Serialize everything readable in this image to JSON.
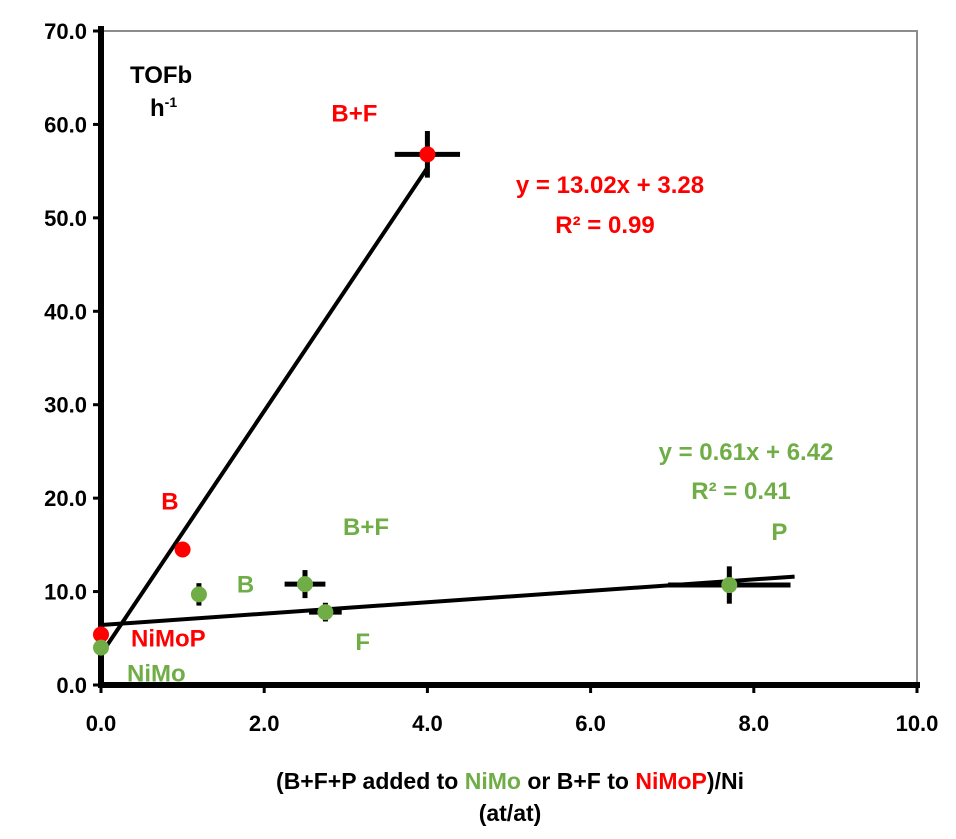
{
  "chart_data": {
    "type": "scatter",
    "xlim": [
      0,
      10
    ],
    "ylim": [
      0,
      70
    ],
    "xticks": [
      "0.0",
      "2.0",
      "4.0",
      "6.0",
      "8.0",
      "10.0"
    ],
    "yticks": [
      "0.0",
      "10.0",
      "20.0",
      "30.0",
      "40.0",
      "50.0",
      "60.0",
      "70.0"
    ],
    "ylabel_line1": "TOFb",
    "ylabel_line2_base": "h",
    "ylabel_line2_sup": "-1",
    "xlabel": {
      "part1": "(B+F+P added to ",
      "part2": "NiMo",
      "part3": " or B+F to ",
      "part4": "NiMoP",
      "part5": ")/Ni",
      "line2": "(at/at)"
    },
    "grid": false,
    "series": [
      {
        "color": "#ff0000",
        "points": [
          {
            "x": 0.0,
            "y": 5.4,
            "label": "NiMoP"
          },
          {
            "x": 1.0,
            "y": 14.5,
            "label": "B"
          },
          {
            "x": 4.0,
            "y": 56.8,
            "label": "B+F",
            "xerr": 0.4,
            "yerr": 2.5
          }
        ],
        "trendline": {
          "slope": 13.02,
          "intercept": 3.28,
          "x_range": [
            0.0,
            4.0
          ]
        },
        "equation": "y = 13.02x + 3.28",
        "r2": "R² = 0.99"
      },
      {
        "color": "#70ad47",
        "points": [
          {
            "x": 0.0,
            "y": 4.0,
            "label": "NiMo"
          },
          {
            "x": 1.2,
            "y": 9.7,
            "label": "B",
            "yerr": 1.2
          },
          {
            "x": 2.5,
            "y": 10.8,
            "label": "B+F",
            "xerr": 0.25,
            "yerr": 1.5
          },
          {
            "x": 2.75,
            "y": 7.8,
            "label": "F",
            "xerr": 0.2,
            "yerr": 1.0
          },
          {
            "x": 7.7,
            "y": 10.7,
            "label": "P",
            "xerr": 0.75,
            "yerr": 2.0
          }
        ],
        "trendline": {
          "slope": 0.61,
          "intercept": 6.42,
          "x_range": [
            0.0,
            8.5
          ]
        },
        "equation": "y = 0.61x + 6.42",
        "r2": "R² = 0.41"
      }
    ]
  }
}
